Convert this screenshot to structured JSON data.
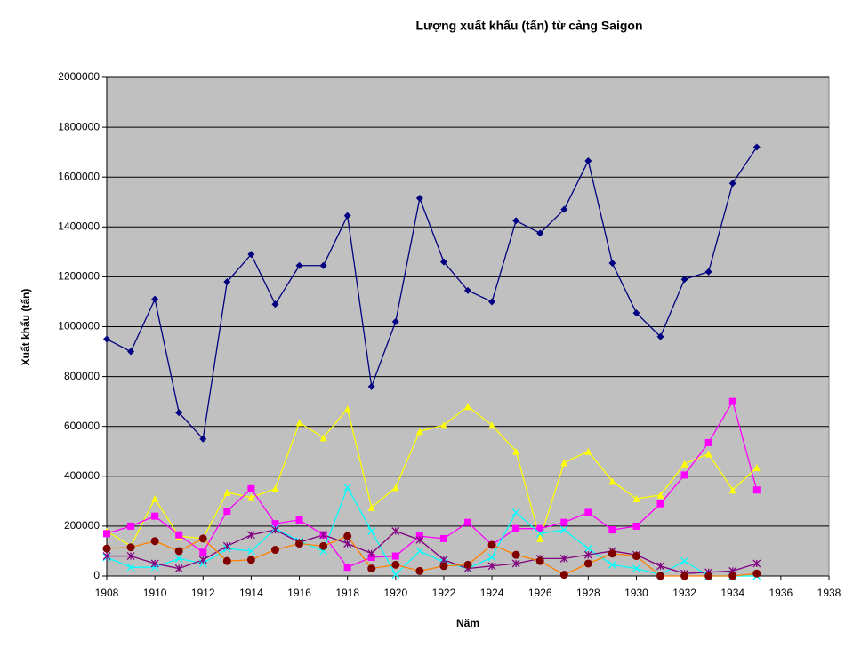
{
  "chart_data": {
    "type": "line",
    "title": "Lượng xuất khẩu (tấn) từ cảng Saigon",
    "x_label": "Năm",
    "y_label": "Xuất khẩu (tấn)",
    "x": [
      1908,
      1909,
      1910,
      1911,
      1912,
      1913,
      1914,
      1915,
      1916,
      1917,
      1918,
      1919,
      1920,
      1921,
      1922,
      1923,
      1924,
      1925,
      1926,
      1927,
      1928,
      1929,
      1930,
      1931,
      1932,
      1933,
      1934,
      1935
    ],
    "series": [
      {
        "color": "#000080",
        "marker": "diamond",
        "values": [
          950000,
          900000,
          1110000,
          655000,
          550000,
          1180000,
          1290000,
          1090000,
          1245000,
          1245000,
          1445000,
          760000,
          1020000,
          1515000,
          1260000,
          1145000,
          1100000,
          1425000,
          1375000,
          1470000,
          1665000,
          1255000,
          1055000,
          960000,
          1190000,
          1220000,
          1575000,
          1720000
        ]
      },
      {
        "color": "#ffff00",
        "marker": "triangle",
        "values": [
          180000,
          120000,
          310000,
          160000,
          150000,
          335000,
          315000,
          350000,
          615000,
          555000,
          670000,
          275000,
          355000,
          580000,
          605000,
          680000,
          605000,
          500000,
          150000,
          455000,
          500000,
          380000,
          310000,
          325000,
          450000,
          490000,
          345000,
          435000
        ]
      },
      {
        "color": "#ff00ff",
        "marker": "square",
        "values": [
          170000,
          200000,
          240000,
          165000,
          95000,
          260000,
          350000,
          210000,
          225000,
          165000,
          35000,
          75000,
          80000,
          160000,
          150000,
          215000,
          125000,
          190000,
          190000,
          215000,
          255000,
          185000,
          200000,
          290000,
          405000,
          535000,
          700000,
          345000
        ]
      },
      {
        "color": "#00ffff",
        "marker": "x",
        "values": [
          75000,
          35000,
          35000,
          70000,
          50000,
          110000,
          100000,
          190000,
          140000,
          100000,
          355000,
          180000,
          5000,
          100000,
          55000,
          30000,
          75000,
          255000,
          170000,
          185000,
          110000,
          45000,
          30000,
          5000,
          60000,
          0,
          0,
          0
        ]
      },
      {
        "color": "#800080",
        "marker": "star",
        "values": [
          80000,
          80000,
          50000,
          30000,
          65000,
          120000,
          165000,
          185000,
          135000,
          165000,
          130000,
          90000,
          180000,
          145000,
          65000,
          30000,
          40000,
          50000,
          70000,
          70000,
          85000,
          100000,
          85000,
          40000,
          10000,
          15000,
          20000,
          50000
        ]
      },
      {
        "color": "#ff8000",
        "marker_color": "#800000",
        "marker": "circle",
        "values": [
          110000,
          115000,
          140000,
          100000,
          150000,
          60000,
          65000,
          105000,
          130000,
          120000,
          160000,
          30000,
          45000,
          20000,
          40000,
          45000,
          125000,
          85000,
          60000,
          5000,
          50000,
          90000,
          80000,
          0,
          0,
          0,
          0,
          10000
        ]
      }
    ],
    "xlim": [
      1908,
      1938
    ],
    "xticks": [
      1908,
      1910,
      1912,
      1914,
      1916,
      1918,
      1920,
      1922,
      1924,
      1926,
      1928,
      1930,
      1932,
      1934,
      1936,
      1938
    ],
    "ylim": [
      0,
      2000000
    ],
    "yticks": [
      0,
      200000,
      400000,
      600000,
      800000,
      1000000,
      1200000,
      1400000,
      1600000,
      1800000,
      2000000
    ],
    "grid": true
  }
}
